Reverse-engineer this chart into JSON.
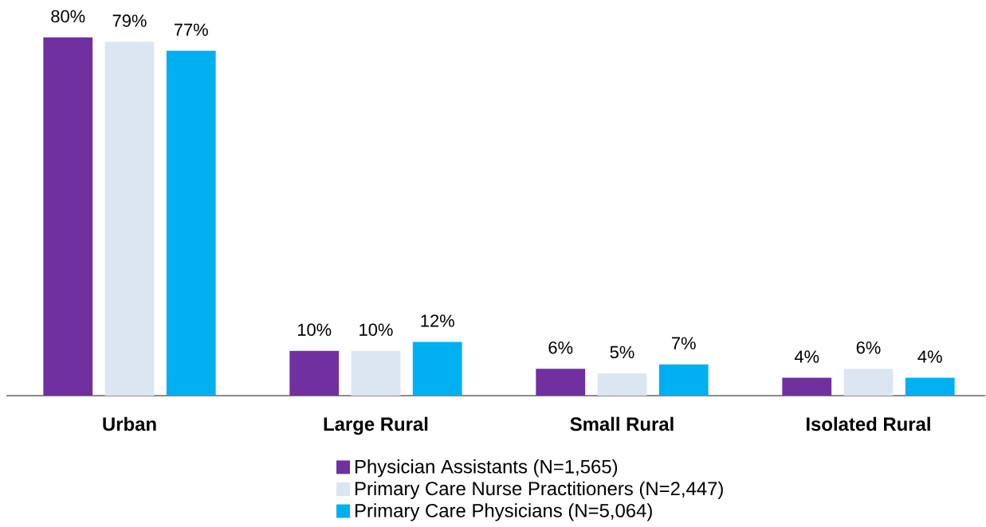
{
  "chart_data": {
    "type": "bar",
    "categories": [
      "Urban",
      "Large Rural",
      "Small Rural",
      "Isolated Rural"
    ],
    "series": [
      {
        "name": "Physician Assistants (N=1,565)",
        "color": "#7030a0",
        "values": [
          80,
          10,
          6,
          4
        ],
        "value_labels": [
          "80%",
          "10%",
          "6%",
          "4%"
        ]
      },
      {
        "name": "Primary Care Nurse Practitioners (N=2,447)",
        "color": "#dce6f2",
        "values": [
          79,
          10,
          5,
          6
        ],
        "value_labels": [
          "79%",
          "10%",
          "5%",
          "6%"
        ]
      },
      {
        "name": "Primary Care Physicians (N=5,064)",
        "color": "#00b0f0",
        "values": [
          77,
          12,
          7,
          4
        ],
        "value_labels": [
          "77%",
          "12%",
          "7%",
          "4%"
        ]
      }
    ],
    "ylim": [
      0,
      80
    ],
    "tick_labels": "x",
    "legend": "bottom"
  }
}
